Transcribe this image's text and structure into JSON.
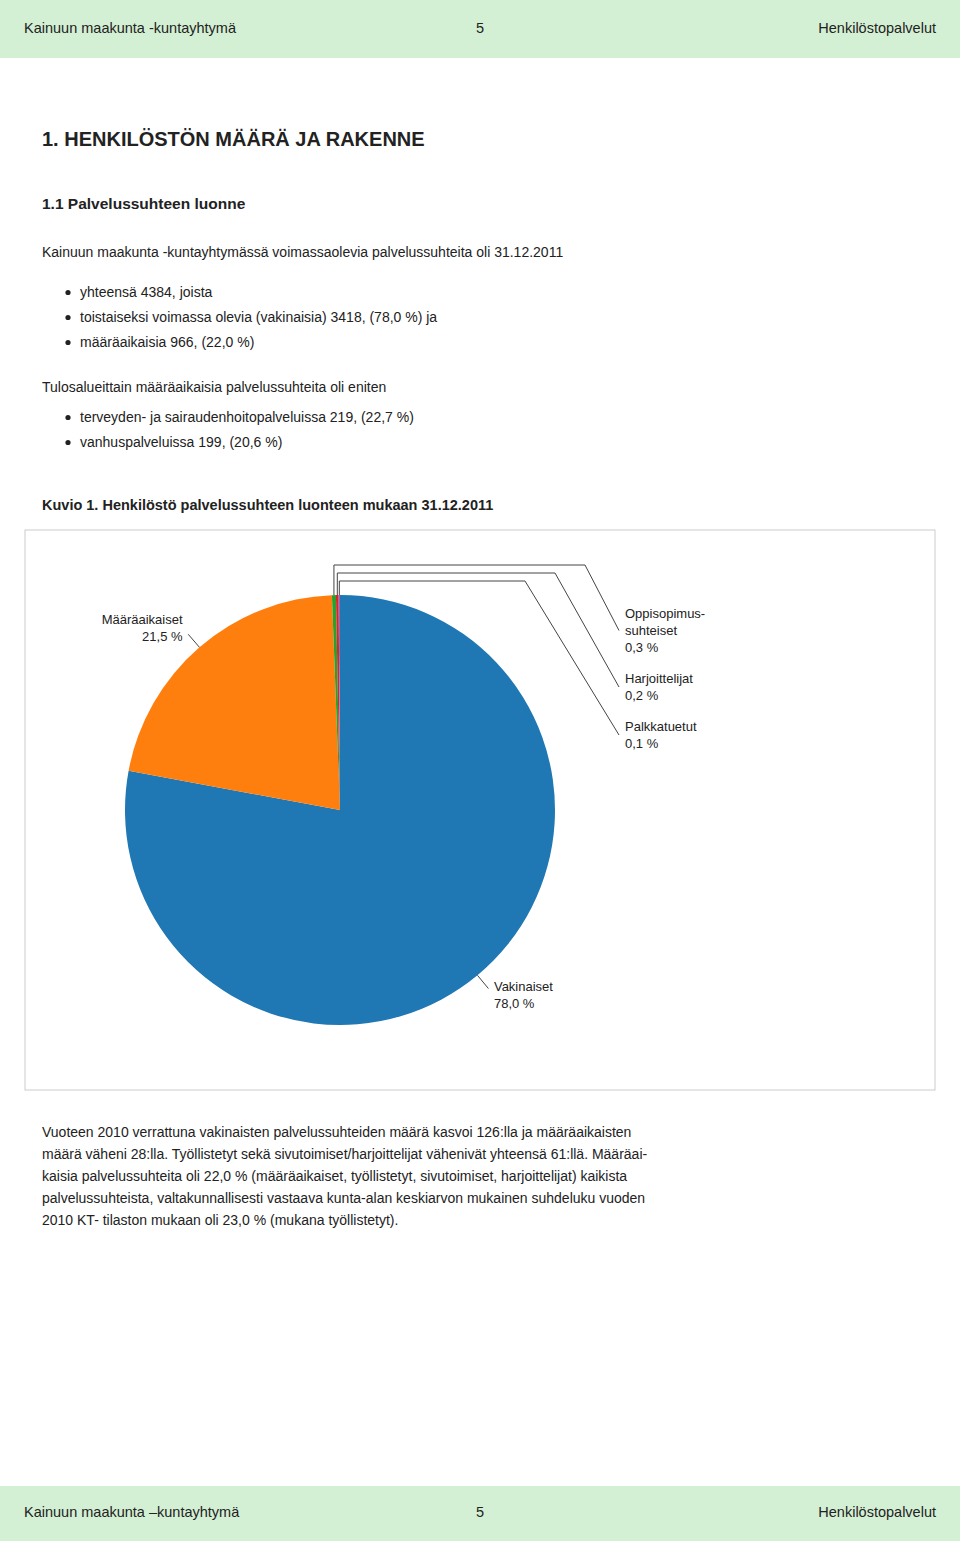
{
  "header": {
    "left": "Kainuun maakunta -kuntayhtymä",
    "center": "5",
    "right": "Henkilöstopalvelut",
    "color": "#d4f0d4"
  },
  "footer": {
    "left": "Kainuun maakunta –kuntayhtymä",
    "center": "5",
    "right": "Henkilöstopalvelut",
    "color": "#d4f0d4"
  },
  "title1": "1. HENKILÖSTÖN MÄÄRÄ JA RAKENNE",
  "title2": "1.1 Palvelussuhteen luonne",
  "body_line0": "Kainuun maakunta -kuntayhtymässä voimassaolevia palvelussuhteita oli 31.12.2011",
  "body_bullets": [
    "yhteensä 4384, joista",
    "toistaiseksi voimassa olevia (vakinaisia) 3418, (78,0 %) ja",
    "määräaikaisia 966, (22,0 %)"
  ],
  "mid_line0": "Tulosalueittain määräaikaisia palvelussuhteita oli eniten",
  "mid_bullets": [
    "terveyden- ja sairaudenhoitopalveluissa 219, (22,7 %)",
    "vanhuspalveluissa 199, (20,6 %)"
  ],
  "chart_data": {
    "type": "pie",
    "title": "Kuvio 1. Henkilöstö palvelussuhteen luonteen mukaan 31.12.2011",
    "categories": [
      "Vakinaiset",
      "Määräaikaiset",
      "Oppisopimus-\nsuhteiset",
      "Harjoittelijat",
      "Palkkatuetut"
    ],
    "values": [
      78.0,
      21.5,
      0.3,
      0.2,
      0.1
    ],
    "value_labels": [
      "78,0 %",
      "21,5 %",
      "0,3 %",
      "0,2 %",
      "0,1 %"
    ],
    "data_labels": true
  },
  "bottom_lines": [
    "Vuoteen 2010 verrattuna vakinaisten palvelussuhteiden määrä kasvoi 126:lla ja määräaikaisten",
    "määrä väheni 28:lla. Työllistetyt sekä sivutoimiset/harjoittelijat vähenivät yhteensä 61:llä. Määräai-",
    "kaisia palvelussuhteita oli 22,0 % (määräaikaiset, työllistetyt, sivutoimiset, harjoittelijat) kaikista",
    "palvelussuhteista, valtakunnallisesti vastaava kunta-alan keskiarvon mukainen suhdeluku vuoden",
    "2010 KT- tilaston mukaan oli 23,0 % (mukana työllistetyt)."
  ]
}
